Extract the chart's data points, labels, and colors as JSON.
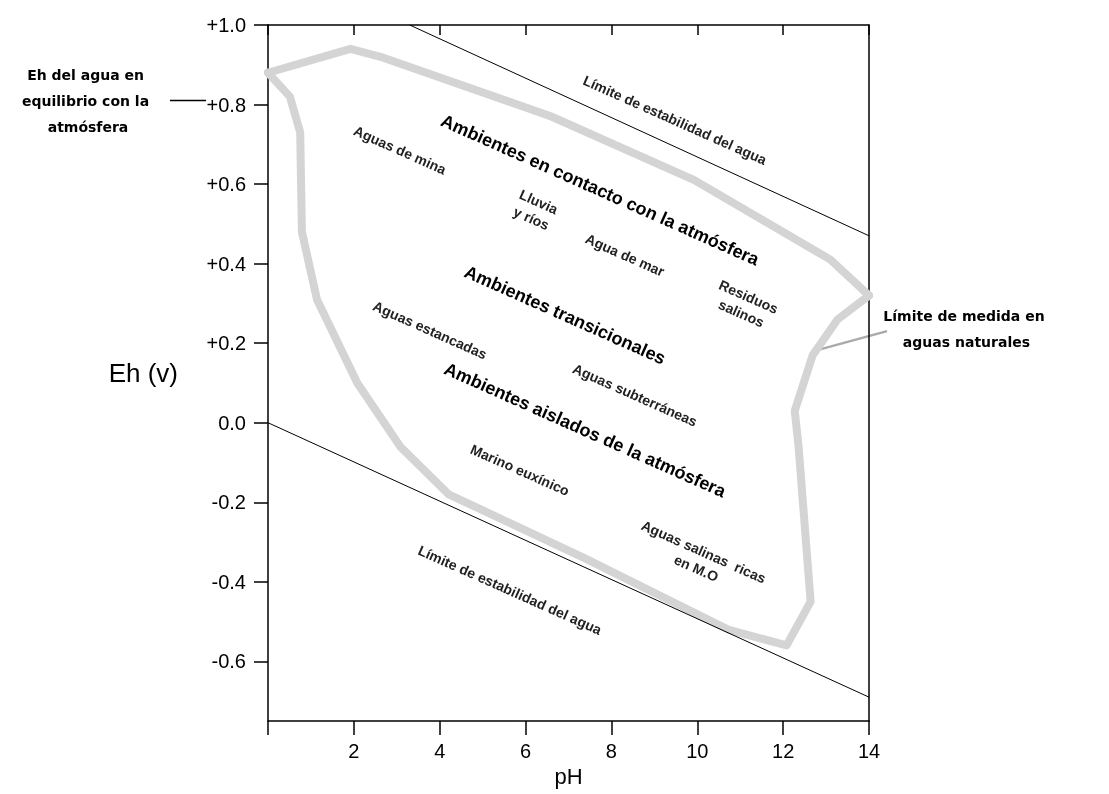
{
  "chart_data": {
    "type": "line",
    "xlabel": "pH",
    "ylabel": "Eh (v)",
    "xlim": [
      0,
      14
    ],
    "ylim": [
      -0.75,
      1.0
    ],
    "xticks": [
      {
        "value": 0,
        "label": null
      },
      2,
      4,
      6,
      8,
      10,
      12,
      14
    ],
    "yticks": [
      -0.6,
      -0.4,
      -0.2,
      {
        "value": 0,
        "label": "0.0"
      },
      {
        "value": 0.2,
        "label": "+0.2"
      },
      {
        "value": 0.4,
        "label": "+0.4"
      },
      {
        "value": 0.6,
        "label": "+0.6"
      },
      {
        "value": 0.8,
        "label": "+0.8"
      },
      {
        "value": 1.0,
        "label": "+1.0"
      }
    ],
    "grid": false,
    "marker": "none",
    "line_style": "solid",
    "series": [
      {
        "color": "#000000",
        "x": [
          3.3,
          14
        ],
        "values": [
          1.0,
          0.47
        ]
      },
      {
        "color": "#000000",
        "x": [
          0,
          14
        ],
        "values": [
          0,
          -0.69
        ]
      },
      {
        "color": "#d4d4d4",
        "x": [
          0,
          1.92,
          2.62,
          6.6,
          9.93,
          13.1,
          14
        ],
        "values": [
          0.88,
          0.94,
          0.92,
          0.77,
          0.61,
          0.41,
          0.32
        ]
      },
      {
        "color": "#d4d4d4",
        "x": [
          14,
          13.27,
          12.69,
          12.27,
          12.36,
          12.64,
          12.08,
          10.72,
          7.36,
          4.21,
          3.08,
          2.08,
          1.14,
          0.79,
          0.75,
          0.51,
          0
        ],
        "values": [
          0.32,
          0.26,
          0.17,
          0.03,
          -0.06,
          -0.45,
          -0.56,
          -0.52,
          -0.34,
          -0.18,
          -0.06,
          0.1,
          0.31,
          0.48,
          0.73,
          0.82,
          0.88
        ]
      }
    ],
    "ref_lines": [
      {
        "axis": "y",
        "value": 0.81,
        "label": "Eh del agua en equilibrio con la atmósfera"
      }
    ],
    "annotations": [
      "Ambientes en contacto con la atmósfera",
      "Ambientes transicionales",
      "Ambientes aislados de la atmósfera",
      "Límite de estabilidad del agua",
      "Aguas de mina",
      "Lluvia\ny ríos",
      "Agua de mar",
      "Residuos\nsalinos",
      "Aguas estancadas",
      "Aguas subterráneas",
      "Marino euxínico",
      "Aguas salinas  ricas\nen M.O",
      "Límite de estabilidad del agua",
      {
        "text": "Límite de medida en aguas naturales",
        "x": 12.71,
        "y": 0.18
      }
    ]
  }
}
